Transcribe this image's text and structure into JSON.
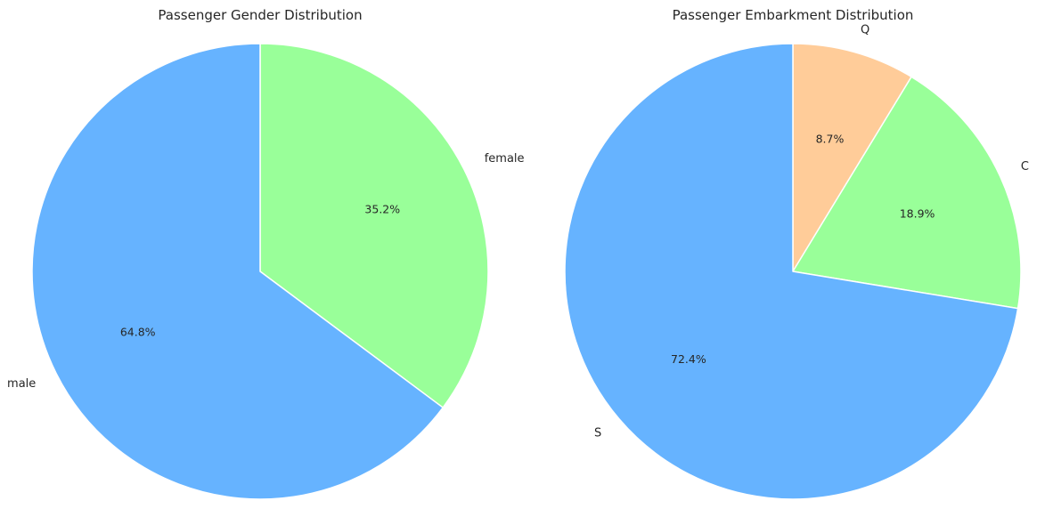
{
  "chart_data": [
    {
      "type": "pie",
      "title": "Passenger Gender Distribution",
      "start_angle_deg": 90,
      "direction": "clockwise",
      "slices": [
        {
          "label": "female",
          "value": 35.2,
          "pct_label": "35.2%",
          "color": "#99ff99"
        },
        {
          "label": "male",
          "value": 64.8,
          "pct_label": "64.8%",
          "color": "#66b3ff"
        }
      ]
    },
    {
      "type": "pie",
      "title": "Passenger Embarkment Distribution",
      "start_angle_deg": 90,
      "direction": "clockwise",
      "slices": [
        {
          "label": "Q",
          "value": 8.7,
          "pct_label": "8.7%",
          "color": "#ffcc99"
        },
        {
          "label": "C",
          "value": 18.9,
          "pct_label": "18.9%",
          "color": "#99ff99"
        },
        {
          "label": "S",
          "value": 72.4,
          "pct_label": "72.4%",
          "color": "#66b3ff"
        }
      ]
    }
  ]
}
